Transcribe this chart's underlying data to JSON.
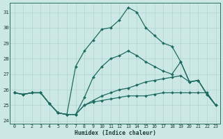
{
  "xlabel": "Humidex (Indice chaleur)",
  "background_color": "#cce8e4",
  "grid_color": "#b0d4d0",
  "line_color": "#1e6b62",
  "xlim": [
    -0.5,
    23.5
  ],
  "ylim": [
    23.8,
    31.6
  ],
  "yticks": [
    24,
    25,
    26,
    27,
    28,
    29,
    30,
    31
  ],
  "xticks": [
    0,
    1,
    2,
    3,
    4,
    5,
    6,
    7,
    8,
    9,
    10,
    11,
    12,
    13,
    14,
    15,
    16,
    17,
    18,
    19,
    20,
    21,
    22,
    23
  ],
  "series": [
    {
      "x": [
        0,
        1,
        2,
        3,
        4,
        5,
        6,
        7,
        8,
        9,
        10,
        11,
        12,
        13,
        14,
        15,
        16,
        17,
        18,
        19,
        20,
        21,
        22,
        23
      ],
      "y": [
        25.8,
        25.7,
        25.8,
        25.8,
        25.1,
        24.5,
        24.4,
        27.5,
        28.5,
        29.2,
        29.9,
        30.0,
        30.5,
        31.3,
        31.0,
        30.0,
        29.5,
        29.0,
        28.8,
        27.8,
        26.5,
        26.6,
        25.7,
        25.0
      ]
    },
    {
      "x": [
        0,
        1,
        2,
        3,
        4,
        5,
        6,
        7,
        8,
        9,
        10,
        11,
        12,
        13,
        14,
        15,
        16,
        17,
        18,
        19,
        20,
        21,
        22,
        23
      ],
      "y": [
        25.8,
        25.7,
        25.8,
        25.8,
        25.1,
        24.5,
        24.4,
        24.4,
        25.5,
        26.8,
        27.5,
        28.0,
        28.2,
        28.5,
        28.2,
        27.8,
        27.5,
        27.2,
        27.0,
        27.8,
        26.5,
        26.6,
        25.7,
        25.0
      ]
    },
    {
      "x": [
        0,
        1,
        2,
        3,
        4,
        5,
        6,
        7,
        8,
        9,
        10,
        11,
        12,
        13,
        14,
        15,
        16,
        17,
        18,
        19,
        20,
        21,
        22,
        23
      ],
      "y": [
        25.8,
        25.7,
        25.8,
        25.8,
        25.1,
        24.5,
        24.4,
        24.4,
        25.0,
        25.2,
        25.3,
        25.4,
        25.5,
        25.6,
        25.6,
        25.6,
        25.7,
        25.8,
        25.8,
        25.8,
        25.8,
        25.8,
        25.8,
        25.0
      ]
    },
    {
      "x": [
        0,
        1,
        2,
        3,
        4,
        5,
        6,
        7,
        8,
        9,
        10,
        11,
        12,
        13,
        14,
        15,
        16,
        17,
        18,
        19,
        20,
        21,
        22,
        23
      ],
      "y": [
        25.8,
        25.7,
        25.8,
        25.8,
        25.1,
        24.5,
        24.4,
        24.4,
        25.0,
        25.3,
        25.6,
        25.8,
        26.0,
        26.1,
        26.3,
        26.5,
        26.6,
        26.7,
        26.8,
        26.9,
        26.5,
        26.6,
        25.7,
        25.0
      ]
    }
  ]
}
